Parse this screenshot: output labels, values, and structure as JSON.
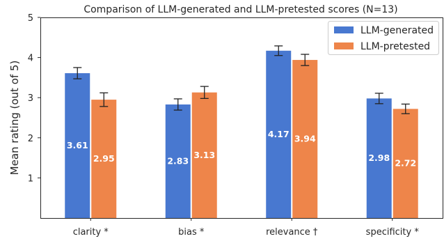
{
  "chart_data": {
    "type": "bar",
    "title": "Comparison of LLM-generated and LLM-pretested scores (N=13)",
    "xlabel": "",
    "ylabel": "Mean rating (out of 5)",
    "ylim": [
      0,
      5
    ],
    "yticks": [
      "1",
      "2",
      "3",
      "4",
      "5"
    ],
    "grid": false,
    "legend_position": "top-right",
    "categories": [
      "clarity *",
      "bias *",
      "relevance †",
      "specificity *"
    ],
    "series": [
      {
        "name": "LLM-generated",
        "color": "#4878d0",
        "values": [
          3.61,
          2.83,
          4.17,
          2.98
        ],
        "errors": [
          0.14,
          0.14,
          0.12,
          0.13
        ],
        "labels": [
          "3.61",
          "2.83",
          "4.17",
          "2.98"
        ]
      },
      {
        "name": "LLM-pretested",
        "color": "#ee854a",
        "values": [
          2.95,
          3.13,
          3.94,
          2.72
        ],
        "errors": [
          0.17,
          0.15,
          0.14,
          0.12
        ],
        "labels": [
          "2.95",
          "3.13",
          "3.94",
          "2.72"
        ]
      }
    ]
  }
}
